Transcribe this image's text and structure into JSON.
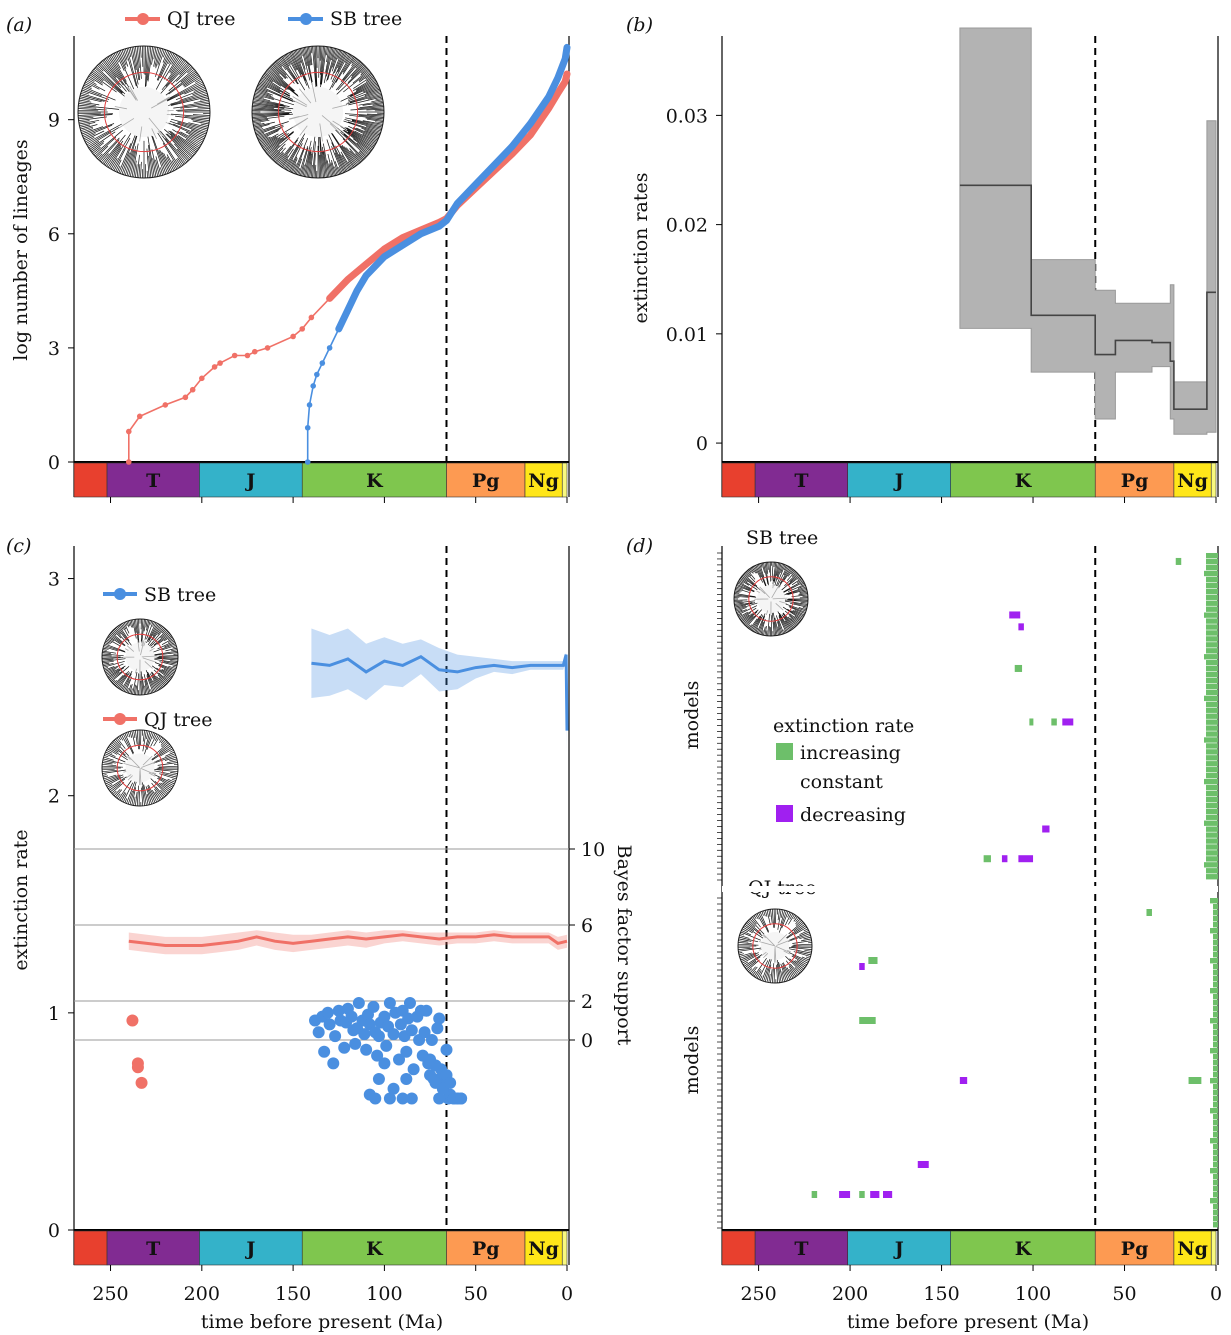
{
  "panels": {
    "a": {
      "label": "(a)",
      "ylabel": "log number of lineages",
      "yticks": [
        0,
        3,
        6,
        9
      ],
      "legend": [
        {
          "name": "QJ tree",
          "color": "#f07167"
        },
        {
          "name": "SB tree",
          "color": "#4a8fe0"
        }
      ]
    },
    "b": {
      "label": "(b)",
      "ylabel": "extinction rates",
      "yticks": [
        "0",
        "0.01",
        "0.02",
        "0.03"
      ]
    },
    "c": {
      "label": "(c)",
      "ylabel": "extinction rate",
      "y2label": "Bayes factor support",
      "yticks": [
        0,
        1,
        2,
        3
      ],
      "y2ticks": [
        0,
        2,
        6,
        10
      ],
      "legend": [
        {
          "name": "SB tree",
          "color": "#4a8fe0"
        },
        {
          "name": "QJ tree",
          "color": "#f07167"
        }
      ]
    },
    "d": {
      "label": "(d)",
      "ylabel_top": "models",
      "ylabel_bottom": "models",
      "tree_top": "SB tree",
      "tree_bottom": "QJ tree",
      "legend_title": "extinction rate",
      "legend": [
        {
          "name": "increasing",
          "color": "#6dbf6a"
        },
        {
          "name": "constant",
          "color": ""
        },
        {
          "name": "decreasing",
          "color": "#a020f0"
        }
      ]
    }
  },
  "xaxis": {
    "label": "time before present (Ma)",
    "ticks": [
      250,
      200,
      150,
      100,
      50,
      0
    ],
    "kpg_boundary": 66
  },
  "periods": [
    {
      "name": "",
      "start": 270,
      "end": 251.9,
      "color": "#e8402e"
    },
    {
      "name": "T",
      "start": 251.9,
      "end": 201.3,
      "color": "#812b92"
    },
    {
      "name": "J",
      "start": 201.3,
      "end": 145,
      "color": "#34b2c9"
    },
    {
      "name": "K",
      "start": 145,
      "end": 66,
      "color": "#7fc64e"
    },
    {
      "name": "Pg",
      "start": 66,
      "end": 23,
      "color": "#fd9a52"
    },
    {
      "name": "Ng",
      "start": 23,
      "end": 2.6,
      "color": "#ffe619"
    },
    {
      "name": "",
      "start": 2.6,
      "end": 0,
      "color": "#f9f97f"
    }
  ],
  "chart_data": [
    {
      "type": "line",
      "panel": "a",
      "xlabel": "time before present (Ma)",
      "ylabel": "log number of lineages",
      "xlim": [
        270,
        0
      ],
      "ylim": [
        0,
        11.2
      ],
      "series": [
        {
          "name": "QJ tree",
          "color": "#f07167",
          "x": [
            240,
            240,
            234,
            220,
            209,
            205,
            200,
            193,
            190,
            182,
            175,
            171,
            164,
            150,
            145,
            140,
            130,
            120,
            110,
            100,
            90,
            80,
            70,
            66,
            60,
            50,
            40,
            30,
            20,
            10,
            5,
            1,
            0
          ],
          "y": [
            0,
            0.8,
            1.2,
            1.5,
            1.7,
            1.9,
            2.2,
            2.5,
            2.6,
            2.8,
            2.8,
            2.9,
            3.0,
            3.3,
            3.5,
            3.8,
            4.3,
            4.8,
            5.2,
            5.6,
            5.9,
            6.1,
            6.3,
            6.4,
            6.75,
            7.2,
            7.65,
            8.1,
            8.6,
            9.3,
            9.7,
            10.0,
            10.2
          ]
        },
        {
          "name": "SB tree",
          "color": "#4a8fe0",
          "x": [
            142,
            142,
            141,
            139,
            137,
            134,
            130,
            125,
            120,
            115,
            110,
            100,
            90,
            80,
            70,
            66,
            60,
            50,
            40,
            30,
            20,
            10,
            5,
            1,
            0
          ],
          "y": [
            0,
            0.9,
            1.5,
            2.0,
            2.3,
            2.6,
            3.0,
            3.5,
            4.0,
            4.5,
            4.9,
            5.4,
            5.7,
            6.0,
            6.2,
            6.35,
            6.8,
            7.3,
            7.8,
            8.3,
            8.9,
            9.6,
            10.1,
            10.6,
            10.9
          ]
        }
      ]
    },
    {
      "type": "area",
      "panel": "b",
      "xlabel": "time before present (Ma)",
      "ylabel": "extinction rates",
      "xlim": [
        270,
        0
      ],
      "ylim": [
        -0.001,
        0.038
      ],
      "x": [
        140,
        140,
        101,
        101,
        66,
        66,
        55,
        55,
        35,
        35,
        25,
        25,
        23,
        23,
        10,
        10,
        5,
        5,
        0
      ],
      "series": [
        {
          "name": "median",
          "values": [
            0.0236,
            0.0236,
            0.0236,
            0.0117,
            0.0117,
            0.0081,
            0.0081,
            0.0094,
            0.0094,
            0.0092,
            0.0092,
            0.0075,
            0.0075,
            0.0031,
            0.0031,
            0.0031,
            0.0031,
            0.0138,
            0.0138
          ]
        },
        {
          "name": "upper",
          "values": [
            0.038,
            0.038,
            0.038,
            0.0168,
            0.0168,
            0.014,
            0.014,
            0.0128,
            0.0128,
            0.0128,
            0.0128,
            0.0145,
            0.0145,
            0.0056,
            0.0056,
            0.0056,
            0.0056,
            0.0295,
            0.0295
          ]
        },
        {
          "name": "lower",
          "values": [
            0.0105,
            0.0105,
            0.0105,
            0.0065,
            0.0065,
            0.0022,
            0.0022,
            0.0065,
            0.0065,
            0.007,
            0.007,
            0.0022,
            0.0022,
            0.0008,
            0.0008,
            0.0008,
            0.0008,
            0.001,
            0.001
          ]
        }
      ]
    },
    {
      "type": "line",
      "panel": "c",
      "xlabel": "time before present (Ma)",
      "ylabel": "extinction rate",
      "xlim": [
        270,
        0
      ],
      "ylim": [
        0,
        3.15
      ],
      "series": [
        {
          "name": "SB tree",
          "color": "#4a8fe0",
          "x": [
            140,
            130,
            120,
            110,
            100,
            90,
            80,
            70,
            60,
            50,
            40,
            30,
            20,
            10,
            2,
            0.5,
            0
          ],
          "y": [
            2.61,
            2.6,
            2.63,
            2.57,
            2.62,
            2.6,
            2.64,
            2.58,
            2.57,
            2.59,
            2.6,
            2.59,
            2.6,
            2.6,
            2.6,
            2.65,
            2.3
          ],
          "band_upper": [
            2.77,
            2.74,
            2.77,
            2.7,
            2.73,
            2.7,
            2.72,
            2.68,
            2.65,
            2.64,
            2.63,
            2.62,
            2.62,
            2.62,
            2.62,
            2.66,
            2.4
          ],
          "band_lower": [
            2.45,
            2.46,
            2.49,
            2.44,
            2.51,
            2.5,
            2.56,
            2.48,
            2.49,
            2.54,
            2.57,
            2.56,
            2.58,
            2.58,
            2.58,
            2.62,
            2.2
          ]
        },
        {
          "name": "QJ tree",
          "color": "#f07167",
          "x": [
            240,
            230,
            220,
            210,
            200,
            190,
            180,
            170,
            160,
            150,
            140,
            130,
            120,
            110,
            100,
            90,
            80,
            70,
            60,
            50,
            40,
            30,
            20,
            10,
            5,
            0
          ],
          "y": [
            1.33,
            1.32,
            1.31,
            1.31,
            1.31,
            1.32,
            1.33,
            1.35,
            1.33,
            1.32,
            1.33,
            1.34,
            1.35,
            1.34,
            1.35,
            1.36,
            1.35,
            1.34,
            1.35,
            1.35,
            1.36,
            1.35,
            1.35,
            1.35,
            1.32,
            1.33
          ],
          "band_upper": [
            1.37,
            1.36,
            1.35,
            1.35,
            1.35,
            1.36,
            1.37,
            1.38,
            1.37,
            1.36,
            1.36,
            1.37,
            1.38,
            1.37,
            1.38,
            1.38,
            1.37,
            1.37,
            1.37,
            1.37,
            1.38,
            1.37,
            1.37,
            1.37,
            1.35,
            1.36
          ],
          "band_lower": [
            1.29,
            1.28,
            1.27,
            1.27,
            1.27,
            1.28,
            1.29,
            1.31,
            1.29,
            1.28,
            1.29,
            1.3,
            1.31,
            1.3,
            1.32,
            1.33,
            1.32,
            1.31,
            1.32,
            1.32,
            1.33,
            1.32,
            1.32,
            1.32,
            1.29,
            1.3
          ]
        }
      ],
      "bayes_factor_points": [
        {
          "name": "QJ tree",
          "color": "#f07167",
          "x": [
            238,
            235,
            235,
            233
          ],
          "bf": [
            1.0,
            -1.2,
            -1.4,
            -2.2
          ]
        },
        {
          "name": "SB tree",
          "color": "#4a8fe0",
          "x": [
            138,
            136,
            134,
            133,
            131,
            130,
            128,
            127,
            125,
            124,
            122,
            121,
            120,
            118,
            117,
            116,
            115,
            114,
            112,
            111,
            110,
            109,
            108,
            106,
            105,
            104,
            103,
            102,
            100,
            99,
            98,
            97,
            95,
            94,
            92,
            91,
            90,
            89,
            88,
            87,
            86,
            85,
            84,
            82,
            81,
            80,
            79,
            78,
            77,
            76,
            75,
            74,
            73,
            72,
            71,
            70,
            69,
            68,
            67,
            66,
            65,
            64,
            62,
            60,
            58,
            108,
            105,
            103,
            100,
            97,
            95,
            90,
            88,
            85,
            75,
            72,
            70,
            68,
            66,
            64,
            62,
            60,
            58
          ],
          "bf": [
            1.0,
            0.4,
            1.2,
            -0.6,
            1.4,
            0.8,
            -1.2,
            0.2,
            1.5,
            1.0,
            -0.4,
            0.9,
            1.6,
            1.2,
            0.5,
            -0.2,
            0.6,
            1.9,
            1.0,
            0.3,
            -0.5,
            1.3,
            0.8,
            1.7,
            0.4,
            -0.8,
            0.2,
            0.9,
            1.2,
            -0.3,
            0.7,
            1.9,
            0.3,
            1.4,
            -1.0,
            0.8,
            1.5,
            0.2,
            -0.6,
            1.1,
            1.9,
            0.5,
            -1.5,
            1.2,
            0.0,
            1.5,
            -0.8,
            0.4,
            1.5,
            -1.2,
            -1.8,
            0.0,
            -2.0,
            -1.3,
            0.6,
            1.1,
            -1.5,
            -1.8,
            -2.3,
            -0.5,
            -3.0,
            -2.8,
            -3.0,
            -3.0,
            -3.0,
            -2.8,
            -3.0,
            -2.0,
            -1.2,
            -3.0,
            -2.5,
            -3.0,
            -2.0,
            -3.0,
            -1.0,
            -2.2,
            -3.0,
            -2.5,
            -1.8,
            -2.2,
            -3.0,
            -3.0,
            -3.0
          ]
        }
      ]
    },
    {
      "type": "heatmap",
      "panel": "d",
      "xlabel": "time before present (Ma)",
      "xlim": [
        270,
        0
      ],
      "groups": [
        {
          "name": "SB tree",
          "rows": 55,
          "blocks": [
            {
              "row": 1,
              "x0": 22,
              "x1": 19,
              "state": "increasing"
            },
            {
              "row": 10,
              "x0": 113,
              "x1": 107,
              "state": "decreasing"
            },
            {
              "row": 12,
              "x0": 108,
              "x1": 105,
              "state": "decreasing"
            },
            {
              "row": 19,
              "x0": 110,
              "x1": 106,
              "state": "increasing"
            },
            {
              "row": 28,
              "x0": 102,
              "x1": 100,
              "state": "increasing"
            },
            {
              "row": 28,
              "x0": 90,
              "x1": 87,
              "state": "increasing"
            },
            {
              "row": 28,
              "x0": 84,
              "x1": 78,
              "state": "decreasing"
            },
            {
              "row": 46,
              "x0": 95,
              "x1": 91,
              "state": "decreasing"
            },
            {
              "row": 51,
              "x0": 127,
              "x1": 123,
              "state": "increasing"
            },
            {
              "row": 51,
              "x0": 117,
              "x1": 114,
              "state": "decreasing"
            },
            {
              "row": 51,
              "x0": 108,
              "x1": 100,
              "state": "decreasing"
            }
          ]
        },
        {
          "name": "QJ tree",
          "rows": 55,
          "blocks": [
            {
              "row": 2,
              "x0": 38,
              "x1": 35,
              "state": "increasing"
            },
            {
              "row": 10,
              "x0": 190,
              "x1": 185,
              "state": "increasing"
            },
            {
              "row": 11,
              "x0": 195,
              "x1": 192,
              "state": "decreasing"
            },
            {
              "row": 20,
              "x0": 195,
              "x1": 186,
              "state": "increasing"
            },
            {
              "row": 30,
              "x0": 140,
              "x1": 136,
              "state": "decreasing"
            },
            {
              "row": 30,
              "x0": 15,
              "x1": 8,
              "state": "increasing"
            },
            {
              "row": 44,
              "x0": 163,
              "x1": 157,
              "state": "decreasing"
            },
            {
              "row": 49,
              "x0": 221,
              "x1": 218,
              "state": "increasing"
            },
            {
              "row": 49,
              "x0": 206,
              "x1": 200,
              "state": "decreasing"
            },
            {
              "row": 49,
              "x0": 195,
              "x1": 192,
              "state": "increasing"
            },
            {
              "row": 49,
              "x0": 189,
              "x1": 184,
              "state": "decreasing"
            },
            {
              "row": 49,
              "x0": 182,
              "x1": 177,
              "state": "decreasing"
            }
          ]
        }
      ]
    }
  ]
}
